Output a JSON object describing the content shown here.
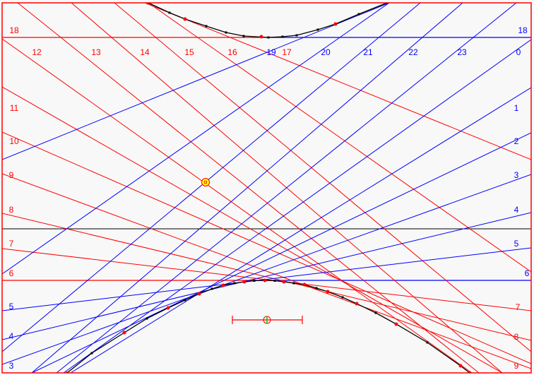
{
  "colors": {
    "background": "#f8f8f8",
    "afternoon_lines": "#ff0000",
    "night_lines": "#0000ff",
    "curve": "#000000",
    "sun_marker": "#ffff00",
    "gnomon_center": "#00cc00"
  },
  "labels": {
    "red_left": [
      "18",
      "11",
      "10",
      "9",
      "8",
      "7",
      "6"
    ],
    "red_top": [
      "12",
      "13",
      "14",
      "15",
      "16",
      "17"
    ],
    "blue_top": [
      "19",
      "20",
      "21",
      "22",
      "23",
      "0"
    ],
    "blue_right": [
      "18",
      "1",
      "2",
      "3",
      "4",
      "5",
      "6"
    ],
    "red_right": [
      "7",
      "8",
      "9"
    ],
    "blue_left": [
      "5",
      "4",
      "3"
    ]
  },
  "markers": {
    "sun_icon": "sun-position-marker",
    "gnomon_icon": "gnomon-base-marker"
  }
}
